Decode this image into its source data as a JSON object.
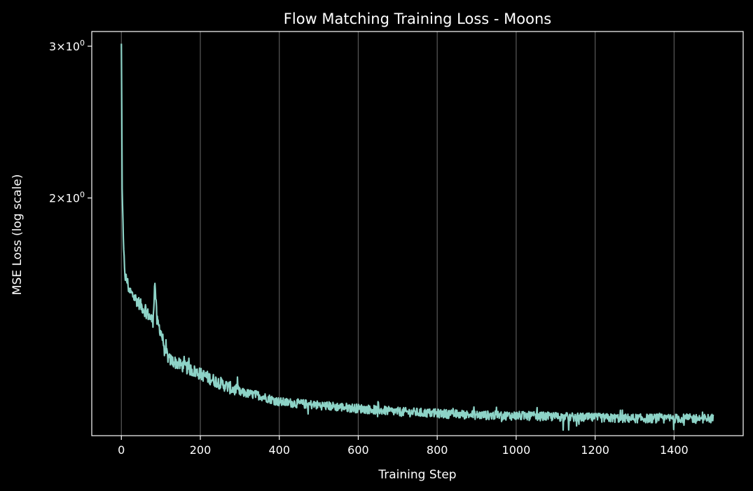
{
  "chart_data": {
    "type": "line",
    "title": "Flow Matching Training Loss - Moons",
    "xlabel": "Training Step",
    "ylabel": "MSE Loss (log scale)",
    "xlim": [
      -75,
      1575
    ],
    "ylim": [
      1.06,
      3.12
    ],
    "yscale": "log",
    "x_ticks": [
      {
        "value": 0,
        "label": "0"
      },
      {
        "value": 200,
        "label": "200"
      },
      {
        "value": 400,
        "label": "400"
      },
      {
        "value": 600,
        "label": "600"
      },
      {
        "value": 800,
        "label": "800"
      },
      {
        "value": 1000,
        "label": "1000"
      },
      {
        "value": 1200,
        "label": "1200"
      },
      {
        "value": 1400,
        "label": "1400"
      }
    ],
    "y_ticks": [
      {
        "value": 3,
        "base": "3",
        "exp": "0"
      },
      {
        "value": 2,
        "base": "2",
        "exp": "0"
      }
    ],
    "grid": "vertical",
    "steps": 1500,
    "series": [
      {
        "color": "#8dd3c7",
        "anchors": [
          [
            0,
            3.02
          ],
          [
            2,
            2.05
          ],
          [
            4,
            1.85
          ],
          [
            6,
            1.72
          ],
          [
            10,
            1.62
          ],
          [
            15,
            1.6
          ],
          [
            20,
            1.56
          ],
          [
            30,
            1.54
          ],
          [
            50,
            1.5
          ],
          [
            70,
            1.46
          ],
          [
            80,
            1.44
          ],
          [
            85,
            1.6
          ],
          [
            90,
            1.44
          ],
          [
            100,
            1.4
          ],
          [
            110,
            1.34
          ],
          [
            120,
            1.3
          ],
          [
            150,
            1.28
          ],
          [
            200,
            1.25
          ],
          [
            250,
            1.22
          ],
          [
            300,
            1.19
          ],
          [
            350,
            1.18
          ],
          [
            400,
            1.16
          ],
          [
            500,
            1.15
          ],
          [
            600,
            1.14
          ],
          [
            700,
            1.13
          ],
          [
            800,
            1.125
          ],
          [
            900,
            1.12
          ],
          [
            1000,
            1.118
          ],
          [
            1100,
            1.115
          ],
          [
            1200,
            1.112
          ],
          [
            1300,
            1.11
          ],
          [
            1400,
            1.11
          ],
          [
            1499,
            1.11
          ]
        ],
        "noise_amplitude": 0.012
      }
    ]
  }
}
